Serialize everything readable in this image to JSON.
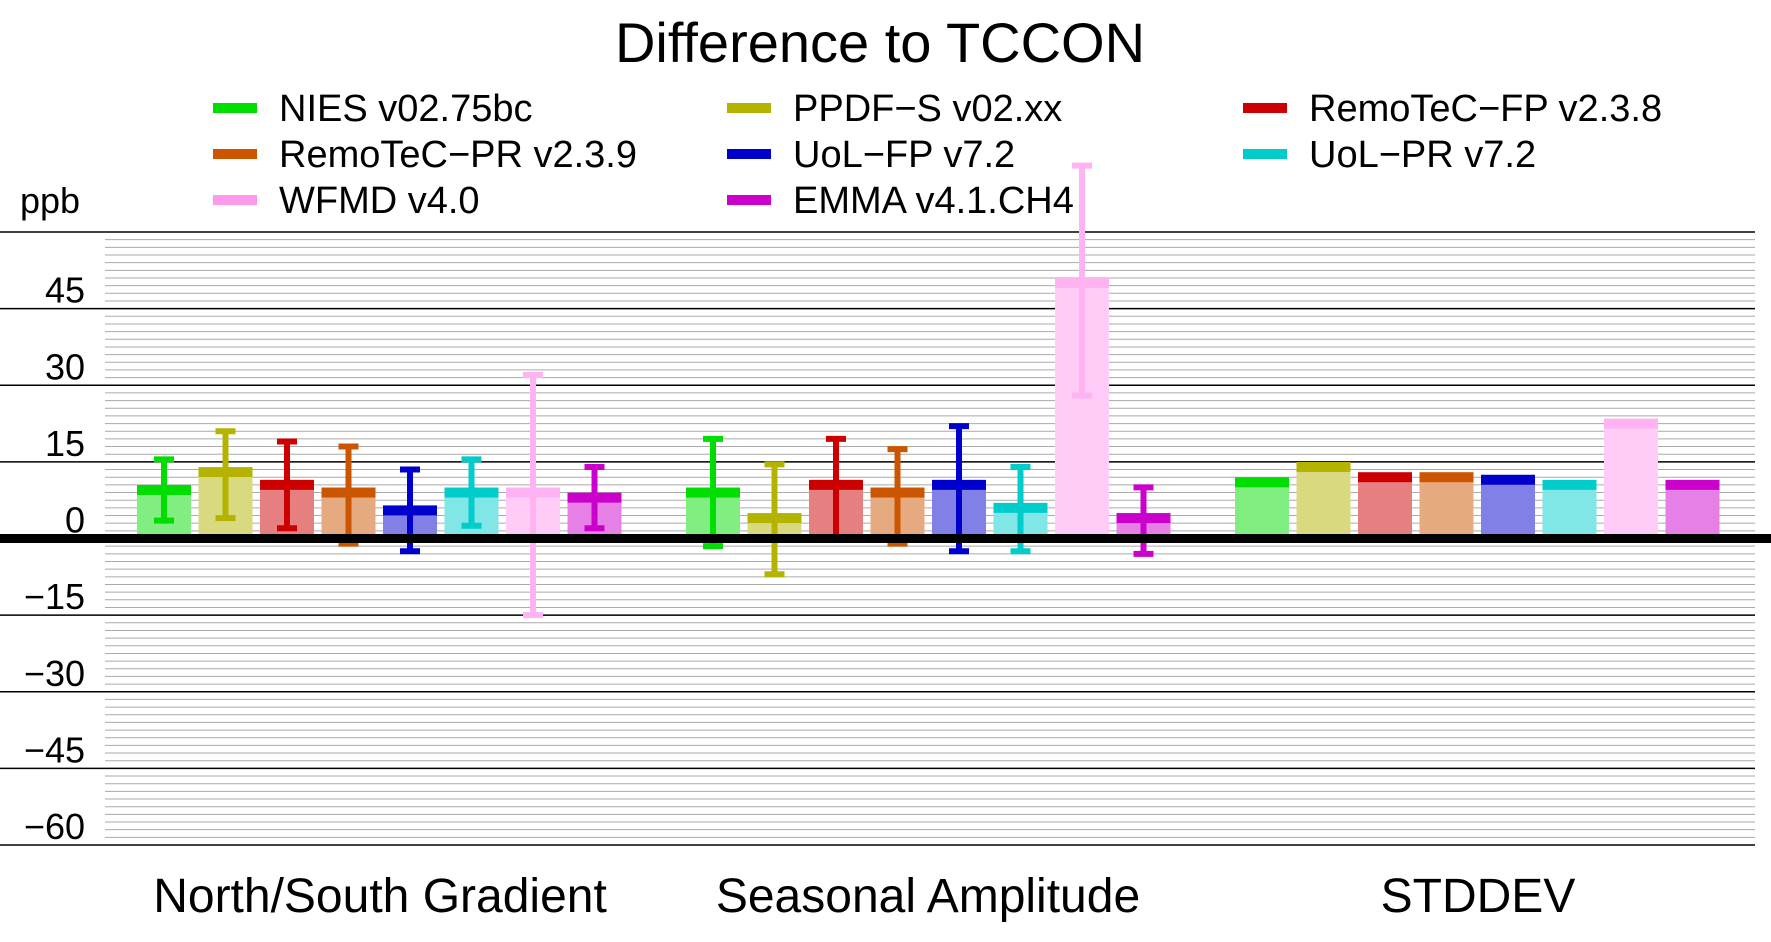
{
  "chart_data": {
    "type": "bar",
    "title": "Difference to TCCON",
    "ylabel": "ppb",
    "ylim": [
      -60,
      60
    ],
    "yticks": [
      45,
      30,
      15,
      0,
      -15,
      -30,
      -45,
      -60
    ],
    "ytick_labels": [
      "45",
      "30",
      "15",
      "0",
      "−15",
      "−30",
      "−45",
      "−60"
    ],
    "grid": true,
    "legend_position": "top",
    "categories": [
      "North/South Gradient",
      "Seasonal Amplitude",
      "STDDEV"
    ],
    "series": [
      {
        "name": "NIES v02.75bc",
        "color": "#00dd00",
        "values": [
          9.5,
          9,
          11
        ],
        "err_low": [
          3.5,
          -1.5,
          null
        ],
        "err_high": [
          15.5,
          19.5,
          null
        ]
      },
      {
        "name": "PPDF−S v02.xx",
        "color": "#b3b300",
        "values": [
          13,
          4,
          14
        ],
        "err_low": [
          4,
          -7,
          null
        ],
        "err_high": [
          21,
          14.5,
          null
        ]
      },
      {
        "name": "RemoTeC−FP v2.3.8",
        "color": "#cc0000",
        "values": [
          10.5,
          10.5,
          12
        ],
        "err_low": [
          2,
          0,
          null
        ],
        "err_high": [
          19,
          19.5,
          null
        ]
      },
      {
        "name": "RemoTeC−PR v2.3.9",
        "color": "#cc5500",
        "values": [
          9,
          9,
          12
        ],
        "err_low": [
          -1,
          -1,
          null
        ],
        "err_high": [
          18,
          17.5,
          null
        ]
      },
      {
        "name": "UoL−FP v7.2",
        "color": "#0000cc",
        "values": [
          5.5,
          10.5,
          11.5
        ],
        "err_low": [
          -2.5,
          -2.5,
          null
        ],
        "err_high": [
          13.5,
          22,
          null
        ]
      },
      {
        "name": "UoL−PR v7.2",
        "color": "#00cccc",
        "values": [
          9,
          6,
          10.5
        ],
        "err_low": [
          2.5,
          -2.5,
          null
        ],
        "err_high": [
          15.5,
          14,
          null
        ]
      },
      {
        "name": "WFMD v4.0",
        "color": "#ff99ee",
        "values": [
          9,
          50,
          22.5
        ],
        "err_low": [
          -15,
          28,
          null
        ],
        "err_high": [
          32,
          73,
          null
        ]
      },
      {
        "name": "EMMA v4.1.CH4",
        "color": "#cc00cc",
        "values": [
          8,
          4,
          10.5
        ],
        "err_low": [
          2,
          -3,
          null
        ],
        "err_high": [
          14,
          10,
          null
        ]
      }
    ]
  }
}
